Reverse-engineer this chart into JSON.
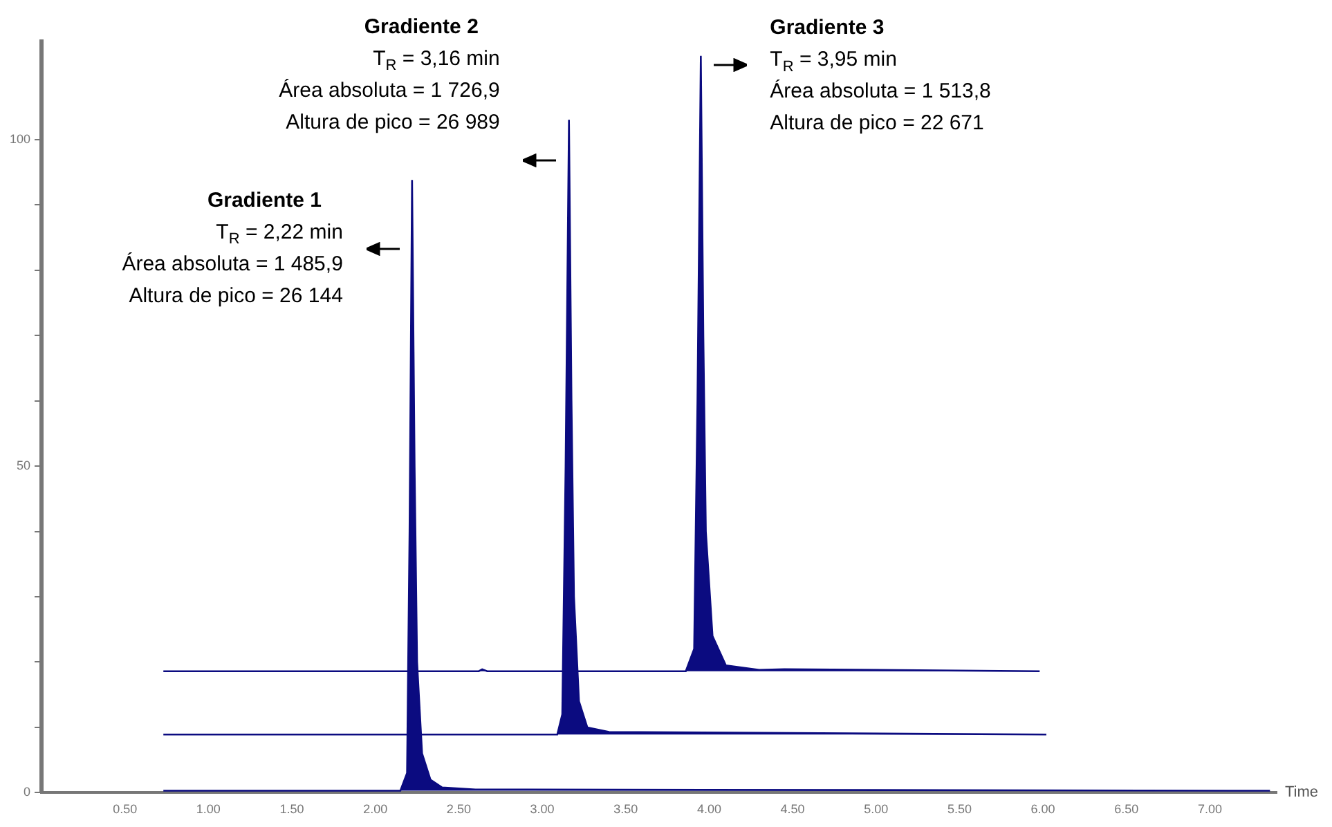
{
  "chart_data": {
    "type": "area",
    "xlabel": "Time",
    "marker": "none",
    "grid": false,
    "legend": false,
    "xlim": [
      0,
      7.4
    ],
    "ylim": [
      0,
      115
    ],
    "xticks": [
      {
        "value": 0.5,
        "label": "0.50"
      },
      {
        "value": 1,
        "label": "1.00"
      },
      {
        "value": 1.5,
        "label": "1.50"
      },
      {
        "value": 2,
        "label": "2.00"
      },
      {
        "value": 2.5,
        "label": "2.50"
      },
      {
        "value": 3,
        "label": "3.00"
      },
      {
        "value": 3.5,
        "label": "3.50"
      },
      {
        "value": 4,
        "label": "4.00"
      },
      {
        "value": 4.5,
        "label": "4.50"
      },
      {
        "value": 5,
        "label": "5.00"
      },
      {
        "value": 5.5,
        "label": "5.50"
      },
      {
        "value": 6,
        "label": "6.00"
      },
      {
        "value": 6.5,
        "label": "6.50"
      },
      {
        "value": 7,
        "label": "7.00"
      }
    ],
    "yticks": [
      0,
      {
        "value": 10,
        "label": null
      },
      {
        "value": 20,
        "label": null
      },
      {
        "value": 30,
        "label": null
      },
      {
        "value": 40,
        "label": null
      },
      50,
      {
        "value": 60,
        "label": null
      },
      {
        "value": 70,
        "label": null
      },
      {
        "value": 80,
        "label": null
      },
      {
        "value": 90,
        "label": null
      },
      100
    ],
    "series": [
      {
        "color": "#0b0b80",
        "x": [
          0.73,
          2.15,
          2.19,
          2.205,
          2.22,
          2.235,
          2.25,
          2.28,
          2.33,
          2.4,
          2.6,
          7.36
        ],
        "values": [
          0.3,
          0.3,
          3,
          40,
          93.8,
          50,
          20,
          6,
          2,
          0.8,
          0.5,
          0.3
        ]
      },
      {
        "color": "#0b0b80",
        "x": [
          0.73,
          3.09,
          3.12,
          3.14,
          3.16,
          3.175,
          3.19,
          3.22,
          3.27,
          3.4,
          6.02
        ],
        "values": [
          8.9,
          8.9,
          12,
          50,
          103,
          60,
          30,
          14,
          10,
          9.3,
          8.9
        ]
      },
      {
        "color": "#0b0b80",
        "x": [
          0.73,
          2.62,
          2.64,
          2.67,
          3.86,
          3.91,
          3.93,
          3.95,
          3.965,
          3.98,
          4.02,
          4.1,
          4.3,
          4.45,
          5.98
        ],
        "values": [
          18.6,
          18.6,
          18.9,
          18.6,
          18.6,
          22,
          60,
          112.8,
          70,
          40,
          24,
          19.5,
          18.8,
          18.9,
          18.6
        ]
      }
    ],
    "annotations": [
      "Gradiente 1\nT$_{R}$ = 2,22 min\nÁrea absoluta = 1 485,9\nAltura de pico = 26 144",
      "Gradiente 2\nT$_{R}$ = 3,16 min\nÁrea absoluta = 1 726,9\nAltura de pico = 26 989",
      "Gradiente 3\nT$_{R}$ = 3,95 min\nÁrea absoluta = 1 513,8\nAltura de pico = 22 671"
    ]
  }
}
